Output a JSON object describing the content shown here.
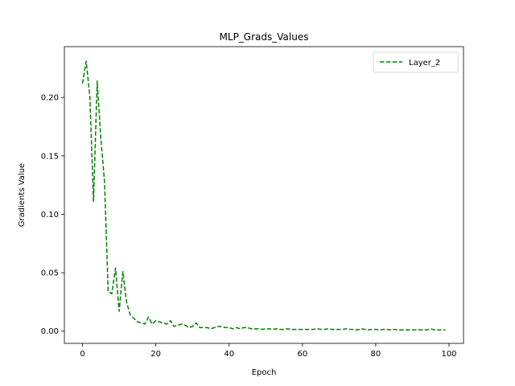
{
  "chart_data": {
    "type": "line",
    "title": "MLP_Grads_Values",
    "xlabel": "Epoch",
    "ylabel": "Gradients Value",
    "xlim": [
      -4.95,
      103.95
    ],
    "ylim": [
      -0.0105,
      0.2435
    ],
    "xticks": [
      0,
      20,
      40,
      60,
      80,
      100
    ],
    "yticks": [
      0.0,
      0.05,
      0.1,
      0.15,
      0.2
    ],
    "xtick_labels": [
      "0",
      "20",
      "40",
      "60",
      "80",
      "100"
    ],
    "ytick_labels": [
      "0.00",
      "0.05",
      "0.10",
      "0.15",
      "0.20"
    ],
    "grid": false,
    "legend_position": "upper right",
    "series": [
      {
        "name": "Layer_2",
        "color": "#008000",
        "linestyle": "dashed",
        "x": [
          0,
          1,
          2,
          3,
          4,
          5,
          6,
          7,
          8,
          9,
          10,
          11,
          12,
          13,
          14,
          15,
          16,
          17,
          18,
          19,
          20,
          21,
          22,
          23,
          24,
          25,
          26,
          27,
          28,
          29,
          30,
          31,
          32,
          33,
          34,
          35,
          36,
          37,
          38,
          39,
          40,
          41,
          42,
          43,
          44,
          45,
          46,
          47,
          48,
          49,
          50,
          51,
          52,
          53,
          54,
          55,
          56,
          57,
          58,
          59,
          60,
          61,
          62,
          63,
          64,
          65,
          66,
          67,
          68,
          69,
          70,
          71,
          72,
          73,
          74,
          75,
          76,
          77,
          78,
          79,
          80,
          81,
          82,
          83,
          84,
          85,
          86,
          87,
          88,
          89,
          90,
          91,
          92,
          93,
          94,
          95,
          96,
          97,
          98,
          99
        ],
        "values": [
          0.212,
          0.231,
          0.201,
          0.111,
          0.214,
          0.165,
          0.128,
          0.034,
          0.032,
          0.054,
          0.017,
          0.051,
          0.025,
          0.014,
          0.011,
          0.008,
          0.007,
          0.006,
          0.012,
          0.006,
          0.009,
          0.008,
          0.007,
          0.006,
          0.009,
          0.004,
          0.005,
          0.006,
          0.005,
          0.003,
          0.004,
          0.007,
          0.003,
          0.003,
          0.003,
          0.002,
          0.003,
          0.004,
          0.004,
          0.003,
          0.003,
          0.002,
          0.003,
          0.002,
          0.003,
          0.003,
          0.002,
          0.002,
          0.002,
          0.0015,
          0.002,
          0.002,
          0.0015,
          0.002,
          0.0015,
          0.0015,
          0.002,
          0.0015,
          0.0015,
          0.0015,
          0.0015,
          0.0015,
          0.0015,
          0.0015,
          0.002,
          0.0015,
          0.0015,
          0.002,
          0.0015,
          0.0015,
          0.0015,
          0.0015,
          0.002,
          0.0015,
          0.0015,
          0.001,
          0.002,
          0.0015,
          0.001,
          0.0015,
          0.0015,
          0.001,
          0.0015,
          0.0015,
          0.001,
          0.0015,
          0.001,
          0.001,
          0.001,
          0.001,
          0.001,
          0.001,
          0.001,
          0.001,
          0.001,
          0.002,
          0.001,
          0.001,
          0.001,
          0.001
        ]
      }
    ]
  }
}
